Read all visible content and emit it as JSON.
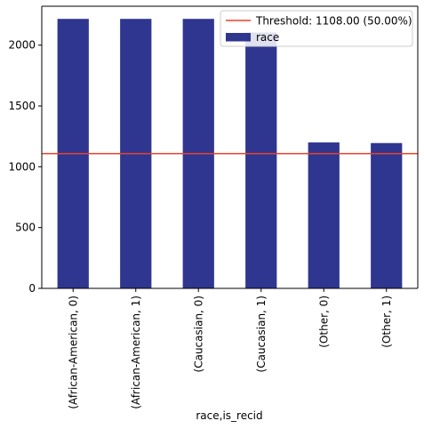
{
  "chart_data": {
    "type": "bar",
    "title": "",
    "xlabel": "race,is_recid",
    "ylabel": "",
    "categories": [
      "(African-American, 0)",
      "(African-American, 1)",
      "(Caucasian, 0)",
      "(Caucasian, 1)",
      "(Other, 0)",
      "(Other, 1)"
    ],
    "series": [
      {
        "name": "race",
        "values": [
          2216,
          2216,
          2216,
          2104,
          1200,
          1195
        ],
        "color": "#2f3690"
      }
    ],
    "threshold": {
      "value": 1108,
      "label": "Threshold: 1108.00 (50.00%)",
      "color": "#e8402b"
    },
    "ylim": [
      0,
      2320
    ],
    "yticks": [
      0,
      500,
      1000,
      1500,
      2000
    ],
    "grid": false,
    "legend_position": "top-right"
  }
}
